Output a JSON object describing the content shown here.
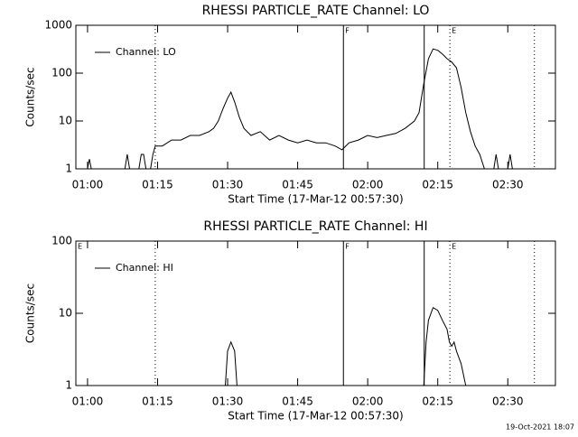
{
  "chart_data": [
    {
      "type": "line",
      "title": "RHESSI PARTICLE_RATE Channel: LO",
      "y_label": "Counts/sec",
      "x_label": "Start Time (17-Mar-12 00:57:30)",
      "log_y": true,
      "legend": "upper left",
      "xlim": [
        57.5,
        160.2
      ],
      "ylim": [
        1,
        1000
      ],
      "xticks": [
        {
          "value": 60,
          "label": "01:00"
        },
        {
          "value": 75,
          "label": "01:15"
        },
        {
          "value": 90,
          "label": "01:30"
        },
        {
          "value": 105,
          "label": "01:45"
        },
        {
          "value": 120,
          "label": "02:00"
        },
        {
          "value": 135,
          "label": "02:15"
        },
        {
          "value": 150,
          "label": "02:30"
        }
      ],
      "yticks": [
        1,
        10,
        100,
        1000
      ],
      "vlines": [
        {
          "x": 74.5,
          "style": "dotted"
        },
        {
          "x": 114.8,
          "style": "solid",
          "label": "F"
        },
        {
          "x": 132.1,
          "style": "solid"
        },
        {
          "x": 137.6,
          "style": "dotted",
          "label": "E"
        },
        {
          "x": 155.7,
          "style": "dotted"
        }
      ],
      "x": [
        59.5,
        60,
        60.4,
        60.8,
        61.2,
        68,
        68.5,
        69,
        69.5,
        71,
        71.5,
        72,
        72.5,
        73,
        73.5,
        74,
        74.5,
        76,
        78,
        80,
        82,
        84,
        86,
        87,
        88,
        89,
        90,
        90.7,
        91.5,
        92.5,
        93.5,
        95,
        97,
        99,
        101,
        103,
        105,
        107,
        109,
        111,
        113,
        114.5,
        116,
        118,
        120,
        122,
        124,
        126,
        128,
        130,
        131,
        132,
        133,
        134,
        135,
        136,
        137,
        138,
        139,
        140,
        141,
        142,
        143,
        144,
        145,
        146,
        147,
        147.5,
        148,
        148.5,
        150,
        150.5,
        151
      ],
      "series": [
        {
          "name": "Channel: LO",
          "color": "#000000",
          "values": [
            null,
            1,
            1.6,
            1,
            null,
            1,
            2,
            1,
            null,
            1,
            2,
            2,
            1,
            null,
            1,
            2,
            3,
            3,
            4,
            4,
            5,
            5,
            6,
            7,
            10,
            18,
            30,
            40,
            25,
            12,
            7,
            5,
            6,
            4,
            5,
            4,
            3.5,
            4,
            3.5,
            3.5,
            3,
            2.5,
            3.5,
            4,
            5,
            4.5,
            5,
            5.5,
            7,
            10,
            15,
            60,
            200,
            320,
            300,
            250,
            200,
            170,
            130,
            50,
            15,
            6,
            3,
            2,
            1,
            null,
            1,
            2,
            1,
            null,
            1,
            2,
            1
          ]
        }
      ]
    },
    {
      "type": "line",
      "title": "RHESSI PARTICLE_RATE Channel: HI",
      "y_label": "Counts/sec",
      "x_label": "Start Time (17-Mar-12 00:57:30)",
      "log_y": true,
      "legend": "upper left",
      "xlim": [
        57.5,
        160.2
      ],
      "ylim": [
        1,
        100
      ],
      "xticks": [
        {
          "value": 60,
          "label": "01:00"
        },
        {
          "value": 75,
          "label": "01:15"
        },
        {
          "value": 90,
          "label": "01:30"
        },
        {
          "value": 105,
          "label": "01:45"
        },
        {
          "value": 120,
          "label": "02:00"
        },
        {
          "value": 135,
          "label": "02:15"
        },
        {
          "value": 150,
          "label": "02:30"
        }
      ],
      "yticks": [
        1,
        10,
        100
      ],
      "vlines": [
        {
          "x": 57.5,
          "style": "solid",
          "label": "E"
        },
        {
          "x": 74.5,
          "style": "dotted"
        },
        {
          "x": 114.8,
          "style": "solid",
          "label": "F"
        },
        {
          "x": 132.1,
          "style": "solid"
        },
        {
          "x": 137.6,
          "style": "dotted",
          "label": "E"
        },
        {
          "x": 155.7,
          "style": "dotted"
        }
      ],
      "x": [
        89.5,
        90,
        90.7,
        91.5,
        92,
        92.5,
        132,
        132.5,
        133,
        134,
        135,
        136,
        137,
        137.5,
        138,
        138.5,
        139,
        140,
        141
      ],
      "series": [
        {
          "name": "Channel: HI",
          "color": "#000000",
          "values": [
            1,
            3,
            4,
            3,
            1,
            null,
            1,
            4,
            8,
            12,
            11,
            8,
            6,
            4,
            3.5,
            4,
            3,
            2,
            1
          ]
        }
      ]
    }
  ],
  "footer": "19-Oct-2021 18:07"
}
